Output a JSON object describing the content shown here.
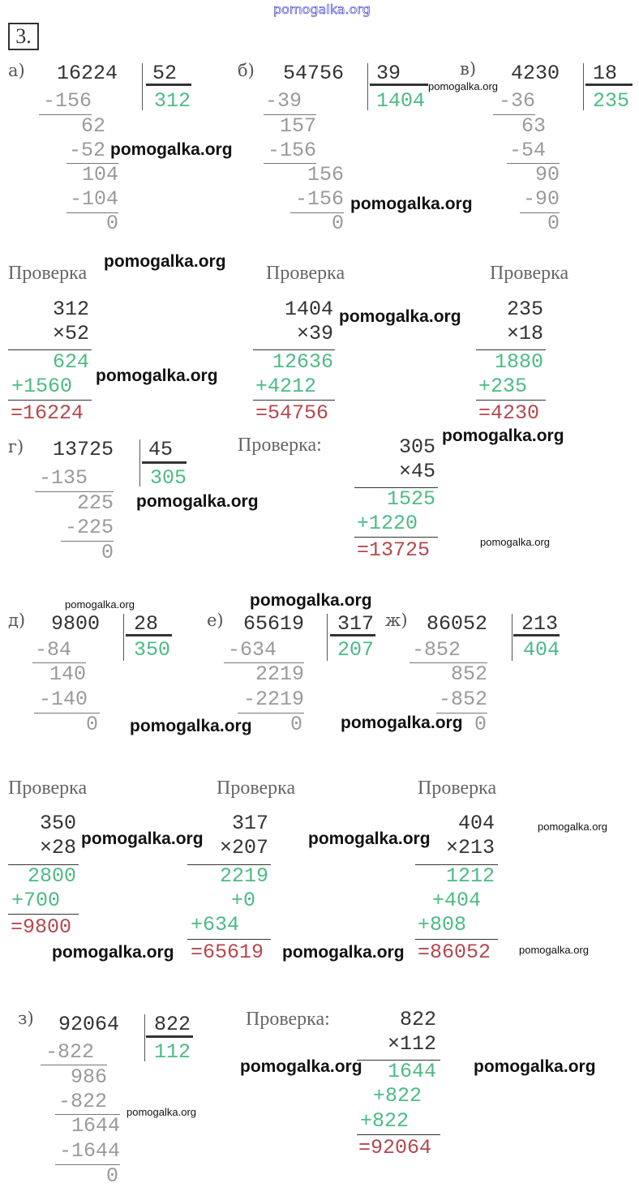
{
  "watermark": "pomogalka.org",
  "task_number": "3.",
  "check_label": "Проверка",
  "check_label_colon": "Проверка:",
  "colors": {
    "text": "#333333",
    "steps": "#9a9a9a",
    "quotient": "#4cbb84",
    "result": "#b5474e",
    "watermark_top": "#2a2ad0"
  },
  "a": {
    "letter": "а)",
    "dividend": "16224",
    "divisor": "52",
    "quotient": "312",
    "steps": [
      "-156",
      "62",
      "-52",
      "104",
      "-104",
      "0"
    ],
    "check": [
      "312",
      "×52",
      "624",
      "+1560",
      "=16224"
    ]
  },
  "b": {
    "letter": "б)",
    "dividend": "54756",
    "divisor": "39",
    "quotient": "1404",
    "steps": [
      "-39",
      "157",
      "-156",
      "156",
      "-156",
      "0"
    ],
    "check": [
      "1404",
      "×39",
      "12636",
      "+4212",
      "=54756"
    ]
  },
  "v": {
    "letter": "в)",
    "dividend": "4230",
    "divisor": "18",
    "quotient": "235",
    "steps": [
      "-36",
      "63",
      "-54",
      "90",
      "-90",
      "0"
    ],
    "check": [
      "235",
      "×18",
      "1880",
      "+235",
      "=4230"
    ]
  },
  "g": {
    "letter": "г)",
    "dividend": "13725",
    "divisor": "45",
    "quotient": "305",
    "steps": [
      "-135",
      "225",
      "-225",
      "0"
    ],
    "check": [
      "305",
      "×45",
      "1525",
      "+1220",
      "=13725"
    ]
  },
  "d": {
    "letter": "д)",
    "dividend": "9800",
    "divisor": "28",
    "quotient": "350",
    "steps": [
      "-84",
      "140",
      "-140",
      "0"
    ],
    "check": [
      "350",
      "×28",
      "2800",
      "+700",
      "=9800"
    ]
  },
  "e": {
    "letter": "е)",
    "dividend": "65619",
    "divisor": "317",
    "quotient": "207",
    "steps": [
      "-634",
      "2219",
      "-2219",
      "0"
    ],
    "check": [
      "317",
      "×207",
      "2219",
      "+0",
      "+634",
      "=65619"
    ]
  },
  "zh": {
    "letter": "ж)",
    "dividend": "86052",
    "divisor": "213",
    "quotient": "404",
    "steps": [
      "-852",
      "852",
      "-852",
      "0"
    ],
    "check": [
      "404",
      "×213",
      "1212",
      "+404",
      "+808",
      "=86052"
    ]
  },
  "z": {
    "letter": "з)",
    "dividend": "92064",
    "divisor": "822",
    "quotient": "112",
    "steps": [
      "-822",
      "986",
      "-822",
      "1644",
      "-1644",
      "0"
    ],
    "check": [
      "822",
      "×112",
      "1644",
      "+822",
      "+822",
      "=92064"
    ]
  }
}
